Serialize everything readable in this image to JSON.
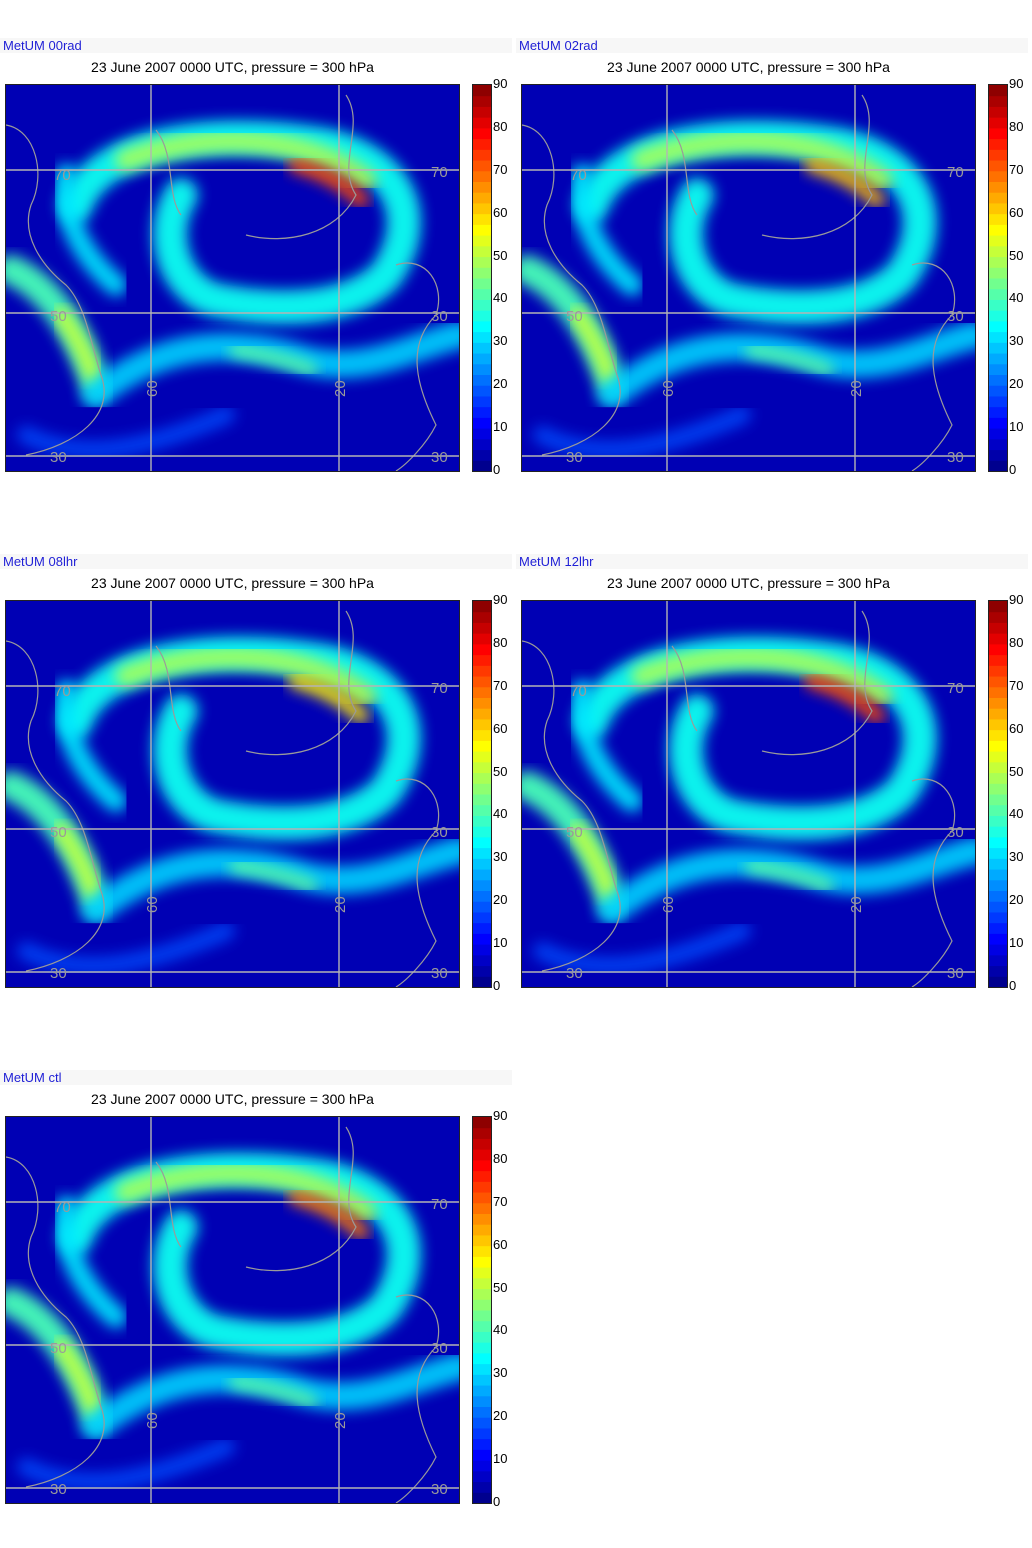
{
  "colors": {
    "background": "#0000b4",
    "grid": "#b4b4b4",
    "coast": "#9a9a9a",
    "model_label": "#1f1fd6"
  },
  "colormap": "jet",
  "colorbar_ticks": [
    "0",
    "10",
    "20",
    "30",
    "40",
    "50",
    "60",
    "70",
    "80",
    "90"
  ],
  "grid_labels": {
    "lat_right_top": "70",
    "lat_left_top": "70",
    "lat_left_mid": "50",
    "lat_right_mid": "30",
    "lat_left_bottom": "30",
    "lat_right_bottom": "30",
    "lon_left": "60",
    "lon_right": "20"
  },
  "chart_data": [
    {
      "type": "heatmap",
      "label": "MetUM 00rad",
      "title": "23 June 2007 0000 UTC, pressure = 300 hPa",
      "colorbar_range": [
        0,
        90
      ],
      "jet_max": 72
    },
    {
      "type": "heatmap",
      "label": "MetUM 02rad",
      "title": "23 June 2007 0000 UTC, pressure = 300 hPa",
      "colorbar_range": [
        0,
        90
      ],
      "jet_max": 62
    },
    {
      "type": "heatmap",
      "label": "MetUM 08lhr",
      "title": "23 June 2007 0000 UTC, pressure = 300 hPa",
      "colorbar_range": [
        0,
        90
      ],
      "jet_max": 58
    },
    {
      "type": "heatmap",
      "label": "MetUM 12lhr",
      "title": "23 June 2007 0000 UTC, pressure = 300 hPa",
      "colorbar_range": [
        0,
        90
      ],
      "jet_max": 72
    },
    {
      "type": "heatmap",
      "label": "MetUM ctl",
      "title": "23 June 2007 0000 UTC, pressure = 300 hPa",
      "colorbar_range": [
        0,
        90
      ],
      "jet_max": 68
    }
  ]
}
